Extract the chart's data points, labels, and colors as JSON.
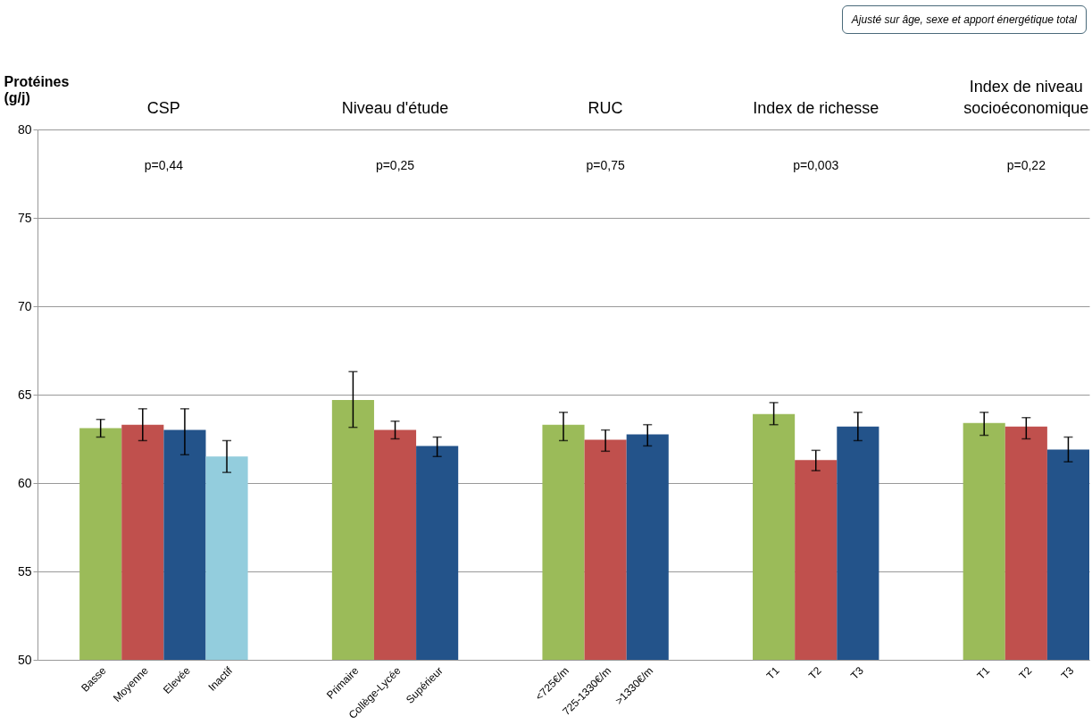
{
  "chart_data": {
    "type": "bar",
    "ylabel": "Protéines (g/j)",
    "categories": [
      "Basse",
      "Moyenne",
      "Elevée",
      "Inactif",
      null,
      null,
      "Primaire",
      "Collège-Lycée",
      "Supérieur",
      null,
      null,
      "<725€/m",
      "725-1330€/m",
      ">1330€/m",
      null,
      null,
      "T1",
      "T2",
      "T3",
      null,
      null,
      "T1",
      "T2",
      "T3"
    ],
    "values": [
      63.1,
      63.3,
      63.0,
      61.5,
      null,
      null,
      64.7,
      63.0,
      62.1,
      null,
      null,
      63.3,
      62.45,
      62.75,
      null,
      null,
      63.9,
      61.3,
      63.2,
      null,
      null,
      63.4,
      63.2,
      61.9
    ],
    "colors": [
      "#9bbb59",
      "#c0504d",
      "#23538a",
      "#93cddd",
      null,
      null,
      "#9bbb59",
      "#c0504d",
      "#23538a",
      null,
      null,
      "#9bbb59",
      "#c0504d",
      "#23538a",
      null,
      null,
      "#9bbb59",
      "#c0504d",
      "#23538a",
      null,
      null,
      "#9bbb59",
      "#c0504d",
      "#23538a"
    ],
    "errors": [
      [
        62.6,
        63.6
      ],
      [
        62.4,
        64.2
      ],
      [
        61.6,
        64.2
      ],
      [
        60.6,
        62.4
      ],
      null,
      null,
      [
        63.15,
        66.3
      ],
      [
        62.5,
        63.5
      ],
      [
        61.5,
        62.6
      ],
      null,
      null,
      [
        62.4,
        64.0
      ],
      [
        61.8,
        63.0
      ],
      [
        62.1,
        63.3
      ],
      null,
      null,
      [
        63.3,
        64.55
      ],
      [
        60.7,
        61.85
      ],
      [
        62.4,
        64.0
      ],
      null,
      null,
      [
        62.7,
        64.0
      ],
      [
        62.5,
        63.7
      ],
      [
        61.2,
        62.6
      ]
    ],
    "ylim": [
      50,
      80
    ],
    "yticks": [
      50,
      55,
      60,
      65,
      70,
      75,
      80
    ],
    "grid": "y",
    "annotations": [
      "CSP",
      "p=0,44",
      "Niveau d'étude",
      "p=0,25",
      "RUC",
      "p=0,75",
      "Index de richesse",
      "p=0,003",
      "Index de niveau socioéconomique",
      "p=0,22",
      "Ajusté sur âge, sexe et apport énergétique total"
    ]
  }
}
